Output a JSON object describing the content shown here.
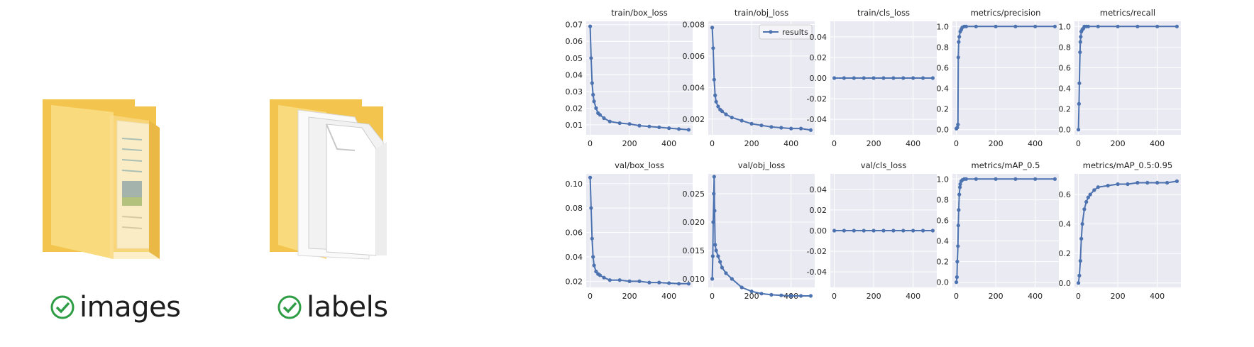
{
  "folders": [
    {
      "name": "images",
      "status": "synced"
    },
    {
      "name": "labels",
      "status": "synced"
    }
  ],
  "colors": {
    "line": "#4c72b0",
    "panel_bg": "#eaeaf2",
    "grid": "#ffffff",
    "folder": "#f8d775",
    "sync": "#2e9d45"
  },
  "chart_data": [
    {
      "type": "line",
      "title": "train/box_loss",
      "ylim": [
        0.004,
        0.072
      ],
      "yticks": [
        0.01,
        0.02,
        0.03,
        0.04,
        0.05,
        0.06,
        0.07
      ],
      "yticklabels": [
        "0.01",
        "0.02",
        "0.03",
        "0.04",
        "0.05",
        "0.06",
        "0.07"
      ],
      "xlim": [
        -20,
        520
      ],
      "xticks": [
        0,
        200,
        400
      ],
      "series": [
        {
          "name": "results",
          "x": [
            0,
            5,
            10,
            15,
            20,
            30,
            40,
            50,
            70,
            100,
            150,
            200,
            250,
            300,
            350,
            400,
            450,
            500
          ],
          "y": [
            0.069,
            0.05,
            0.035,
            0.028,
            0.024,
            0.02,
            0.017,
            0.016,
            0.014,
            0.012,
            0.011,
            0.0105,
            0.0095,
            0.009,
            0.0085,
            0.008,
            0.0075,
            0.007
          ]
        }
      ]
    },
    {
      "type": "line",
      "title": "train/obj_loss",
      "ylim": [
        0.001,
        0.0082
      ],
      "yticks": [
        0.002,
        0.004,
        0.006,
        0.008
      ],
      "yticklabels": [
        "0.002",
        "0.004",
        "0.006",
        "0.008"
      ],
      "xlim": [
        -20,
        520
      ],
      "xticks": [
        0,
        200,
        400
      ],
      "legend": "results",
      "series": [
        {
          "name": "results",
          "x": [
            0,
            5,
            10,
            15,
            20,
            30,
            40,
            50,
            70,
            100,
            150,
            200,
            250,
            300,
            350,
            400,
            450,
            500
          ],
          "y": [
            0.0078,
            0.0065,
            0.0045,
            0.0035,
            0.0031,
            0.0028,
            0.0026,
            0.0025,
            0.0023,
            0.0021,
            0.0019,
            0.0017,
            0.0016,
            0.0015,
            0.00145,
            0.0014,
            0.0014,
            0.0013
          ]
        }
      ]
    },
    {
      "type": "line",
      "title": "train/cls_loss",
      "ylim": [
        -0.055,
        0.055
      ],
      "yticks": [
        -0.04,
        -0.02,
        0.0,
        0.02,
        0.04
      ],
      "yticklabels": [
        "-0.04",
        "-0.02",
        "0.00",
        "0.02",
        "0.04"
      ],
      "xlim": [
        -20,
        520
      ],
      "xticks": [
        0,
        200,
        400
      ],
      "series": [
        {
          "name": "results",
          "x": [
            0,
            50,
            100,
            150,
            200,
            250,
            300,
            350,
            400,
            450,
            500
          ],
          "y": [
            0,
            0,
            0,
            0,
            0,
            0,
            0,
            0,
            0,
            0,
            0
          ]
        }
      ]
    },
    {
      "type": "line",
      "title": "metrics/precision",
      "ylim": [
        -0.05,
        1.05
      ],
      "yticks": [
        0.0,
        0.2,
        0.4,
        0.6,
        0.8,
        1.0
      ],
      "yticklabels": [
        "0.0",
        "0.2",
        "0.4",
        "0.6",
        "0.8",
        "1.0"
      ],
      "xlim": [
        -20,
        520
      ],
      "xticks": [
        0,
        200,
        400
      ],
      "series": [
        {
          "name": "results",
          "x": [
            0,
            5,
            8,
            10,
            12,
            15,
            20,
            25,
            30,
            40,
            50,
            100,
            200,
            300,
            400,
            500
          ],
          "y": [
            0.01,
            0.02,
            0.05,
            0.7,
            0.85,
            0.9,
            0.95,
            0.97,
            0.99,
            1.0,
            1.0,
            1.0,
            1.0,
            1.0,
            1.0,
            1.0
          ]
        }
      ]
    },
    {
      "type": "line",
      "title": "metrics/recall",
      "ylim": [
        -0.05,
        1.05
      ],
      "yticks": [
        0.0,
        0.2,
        0.4,
        0.6,
        0.8,
        1.0
      ],
      "yticklabels": [
        "0.0",
        "0.2",
        "0.4",
        "0.6",
        "0.8",
        "1.0"
      ],
      "xlim": [
        -20,
        520
      ],
      "xticks": [
        0,
        200,
        400
      ],
      "series": [
        {
          "name": "results",
          "x": [
            0,
            3,
            5,
            8,
            10,
            12,
            15,
            20,
            25,
            30,
            40,
            50,
            100,
            200,
            300,
            400,
            500
          ],
          "y": [
            0.0,
            0.25,
            0.45,
            0.75,
            0.85,
            0.9,
            0.95,
            0.97,
            0.98,
            1.0,
            1.0,
            1.0,
            1.0,
            1.0,
            1.0,
            1.0,
            1.0
          ]
        }
      ]
    },
    {
      "type": "line",
      "title": "val/box_loss",
      "ylim": [
        0.015,
        0.108
      ],
      "yticks": [
        0.02,
        0.04,
        0.06,
        0.08,
        0.1
      ],
      "yticklabels": [
        "0.02",
        "0.04",
        "0.06",
        "0.08",
        "0.10"
      ],
      "xlim": [
        -20,
        520
      ],
      "xticks": [
        0,
        200,
        400
      ],
      "series": [
        {
          "name": "results",
          "x": [
            0,
            5,
            10,
            15,
            20,
            30,
            40,
            50,
            70,
            100,
            150,
            200,
            250,
            300,
            350,
            400,
            450,
            500
          ],
          "y": [
            0.105,
            0.08,
            0.055,
            0.04,
            0.033,
            0.028,
            0.026,
            0.025,
            0.023,
            0.021,
            0.021,
            0.02,
            0.02,
            0.019,
            0.019,
            0.0185,
            0.018,
            0.018
          ]
        }
      ]
    },
    {
      "type": "line",
      "title": "val/obj_loss",
      "ylim": [
        0.0085,
        0.0285
      ],
      "yticks": [
        0.01,
        0.015,
        0.02,
        0.025
      ],
      "yticklabels": [
        "0.010",
        "0.015",
        "0.020",
        "0.025"
      ],
      "xlim": [
        -20,
        520
      ],
      "xticks": [
        0,
        200,
        400
      ],
      "series": [
        {
          "name": "results",
          "x": [
            0,
            3,
            5,
            8,
            10,
            12,
            15,
            20,
            30,
            40,
            50,
            70,
            100,
            150,
            200,
            250,
            300,
            350,
            400,
            450,
            500
          ],
          "y": [
            0.01,
            0.014,
            0.02,
            0.025,
            0.028,
            0.022,
            0.016,
            0.015,
            0.014,
            0.013,
            0.012,
            0.011,
            0.01,
            0.0085,
            0.0078,
            0.0074,
            0.0072,
            0.0071,
            0.007,
            0.007,
            0.007
          ]
        }
      ]
    },
    {
      "type": "line",
      "title": "val/cls_loss",
      "ylim": [
        -0.055,
        0.055
      ],
      "yticks": [
        -0.04,
        -0.02,
        0.0,
        0.02,
        0.04
      ],
      "yticklabels": [
        "-0.04",
        "-0.02",
        "0.00",
        "0.02",
        "0.04"
      ],
      "xlim": [
        -20,
        520
      ],
      "xticks": [
        0,
        200,
        400
      ],
      "series": [
        {
          "name": "results",
          "x": [
            0,
            50,
            100,
            150,
            200,
            250,
            300,
            350,
            400,
            450,
            500
          ],
          "y": [
            0,
            0,
            0,
            0,
            0,
            0,
            0,
            0,
            0,
            0,
            0
          ]
        }
      ]
    },
    {
      "type": "line",
      "title": "metrics/mAP_0.5",
      "ylim": [
        -0.05,
        1.05
      ],
      "yticks": [
        0.0,
        0.2,
        0.4,
        0.6,
        0.8,
        1.0
      ],
      "yticklabels": [
        "0.0",
        "0.2",
        "0.4",
        "0.6",
        "0.8",
        "1.0"
      ],
      "xlim": [
        -20,
        520
      ],
      "xticks": [
        0,
        200,
        400
      ],
      "series": [
        {
          "name": "results",
          "x": [
            0,
            3,
            5,
            8,
            10,
            12,
            15,
            18,
            20,
            25,
            30,
            40,
            50,
            100,
            200,
            300,
            400,
            500
          ],
          "y": [
            0.0,
            0.05,
            0.2,
            0.35,
            0.55,
            0.7,
            0.85,
            0.92,
            0.95,
            0.98,
            0.99,
            1.0,
            1.0,
            1.0,
            1.0,
            1.0,
            1.0,
            1.0
          ]
        }
      ]
    },
    {
      "type": "line",
      "title": "metrics/mAP_0.5:0.95",
      "ylim": [
        -0.03,
        0.74
      ],
      "yticks": [
        0.0,
        0.2,
        0.4,
        0.6
      ],
      "yticklabels": [
        "0.0",
        "0.2",
        "0.4",
        "0.6"
      ],
      "xlim": [
        -20,
        520
      ],
      "xticks": [
        0,
        200,
        400
      ],
      "series": [
        {
          "name": "results",
          "x": [
            0,
            5,
            10,
            15,
            20,
            30,
            40,
            50,
            60,
            80,
            100,
            150,
            200,
            250,
            300,
            350,
            400,
            450,
            500
          ],
          "y": [
            0.0,
            0.05,
            0.15,
            0.3,
            0.4,
            0.5,
            0.55,
            0.58,
            0.6,
            0.63,
            0.65,
            0.66,
            0.67,
            0.67,
            0.68,
            0.68,
            0.68,
            0.68,
            0.69
          ]
        }
      ]
    }
  ]
}
